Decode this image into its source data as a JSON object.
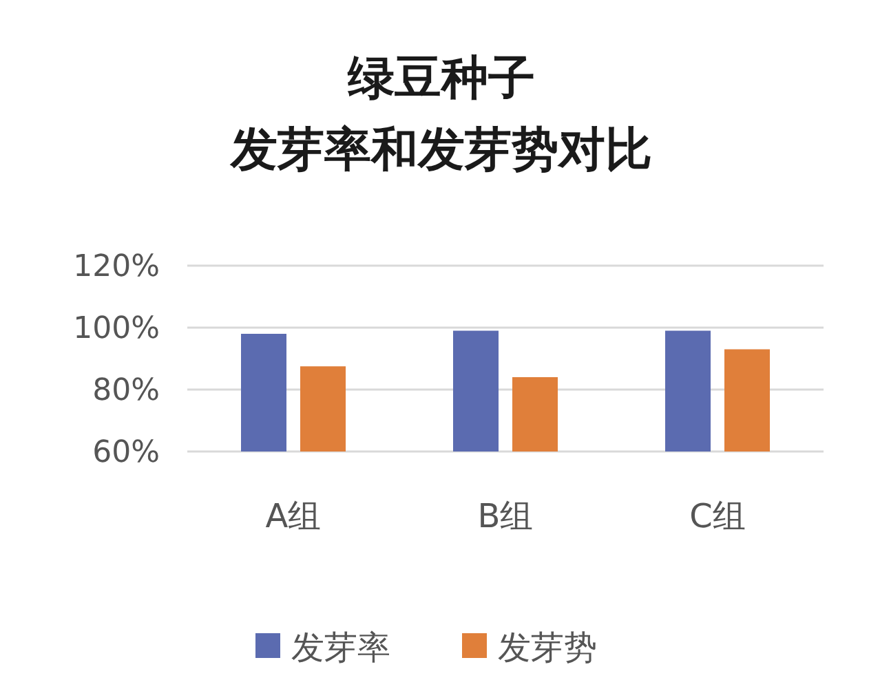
{
  "chart_data": {
    "type": "bar",
    "title": "绿豆种子",
    "subtitle": "发芽率和发芽势对比",
    "categories": [
      "A组",
      "B组",
      "C组"
    ],
    "series": [
      {
        "name": "发芽率",
        "color": "#5b6bb0",
        "values": [
          98,
          99,
          99
        ]
      },
      {
        "name": "发芽势",
        "color": "#e07f3a",
        "values": [
          87.5,
          84,
          93
        ]
      }
    ],
    "ylim": [
      60,
      120
    ],
    "yticks": [
      {
        "value": 60,
        "label": "60%"
      },
      {
        "value": 80,
        "label": "80%"
      },
      {
        "value": 100,
        "label": "100%"
      },
      {
        "value": 120,
        "label": "120%"
      }
    ],
    "grid": "y",
    "legend": "bottom"
  }
}
